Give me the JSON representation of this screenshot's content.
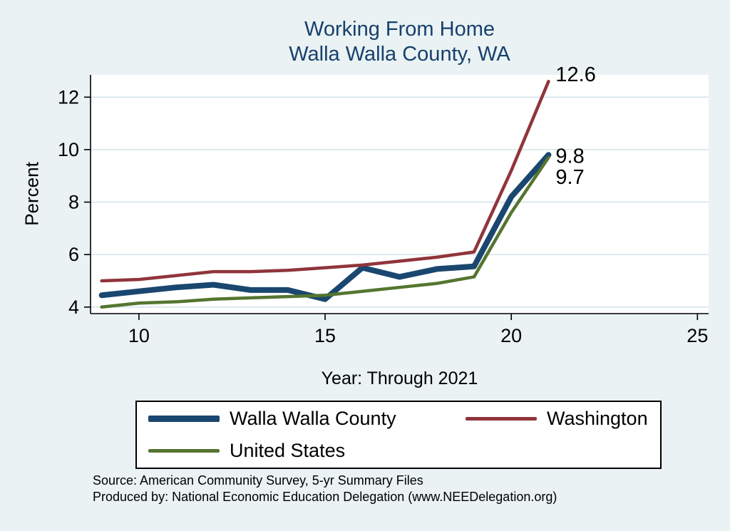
{
  "title": {
    "line1": "Working From Home",
    "line2": "Walla Walla County, WA"
  },
  "ylabel": "Percent",
  "xlabel": "Year: Through 2021",
  "footer": {
    "source": "Source: American Community Survey, 5-yr Summary Files",
    "produced": "Produced by: National Economic Education Delegation (www.NEEDelegation.org)"
  },
  "legend": [
    {
      "label": "Walla Walla County",
      "color": "#1a476f",
      "weight": "thick"
    },
    {
      "label": "Washington",
      "color": "#90353b",
      "weight": "thin"
    },
    {
      "label": "United States",
      "color": "#55752f",
      "weight": "thin"
    }
  ],
  "colors": {
    "background": "#eaf2f3",
    "plot_background": "#ffffff",
    "grid": "#cfe0e6",
    "axis": "#000000",
    "title": "#17406d"
  },
  "chart_data": {
    "type": "line",
    "title": "Working From Home, Walla Walla County, WA",
    "xlabel": "Year: Through 2021",
    "ylabel": "Percent",
    "x": [
      9,
      10,
      11,
      12,
      13,
      14,
      15,
      16,
      17,
      18,
      19,
      20,
      21
    ],
    "series": [
      {
        "name": "Walla Walla County",
        "color": "#1a476f",
        "width": 8,
        "values": [
          4.45,
          4.6,
          4.75,
          4.85,
          4.65,
          4.65,
          4.3,
          5.5,
          5.15,
          5.45,
          5.55,
          8.2,
          9.8
        ],
        "end_label": "9.8",
        "label_dy": 11
      },
      {
        "name": "Washington",
        "color": "#90353b",
        "width": 4.5,
        "values": [
          5.0,
          5.05,
          5.2,
          5.35,
          5.35,
          5.4,
          5.5,
          5.6,
          5.75,
          5.9,
          6.1,
          9.2,
          12.6
        ],
        "end_label": "12.6",
        "label_dy": 0
      },
      {
        "name": "United States",
        "color": "#55752f",
        "width": 4.5,
        "values": [
          4.0,
          4.15,
          4.2,
          4.3,
          4.35,
          4.4,
          4.45,
          4.6,
          4.75,
          4.9,
          5.15,
          7.6,
          9.7
        ],
        "end_label": "9.7",
        "label_dy": 37
      }
    ],
    "xticks": [
      10,
      15,
      20,
      25
    ],
    "yticks": [
      4,
      6,
      8,
      10,
      12
    ],
    "xlim": [
      8.7,
      25.3
    ],
    "ylim": [
      3.75,
      12.85
    ],
    "grid": true,
    "legend_position": "bottom"
  }
}
